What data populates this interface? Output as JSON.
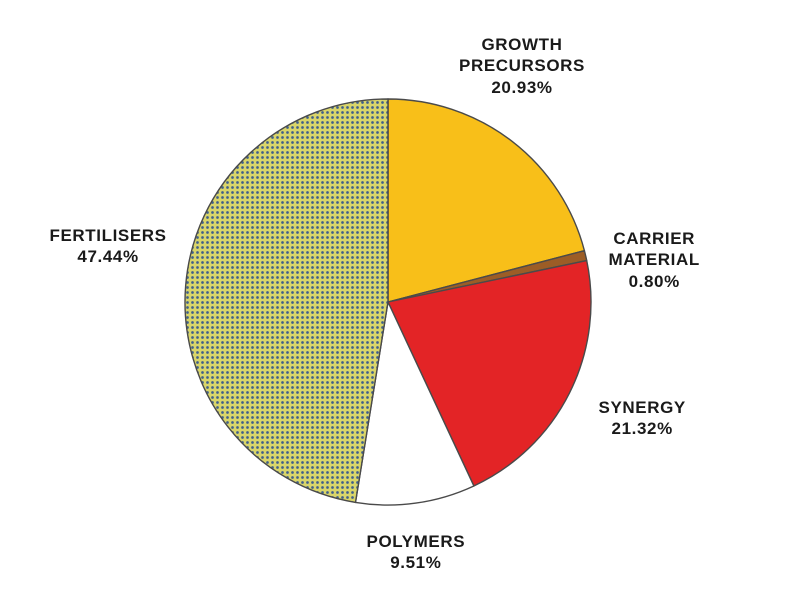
{
  "chart_data": {
    "type": "pie",
    "title": "",
    "start_angle_deg": 0,
    "direction": "clockwise",
    "slices": [
      {
        "label": [
          "GROWTH",
          "PRECURSORS"
        ],
        "value_label": "20.93%",
        "value": 20.93,
        "color": "#f8bf19",
        "fill": "solid"
      },
      {
        "label": [
          "CARRIER",
          "MATERIAL"
        ],
        "value_label": "0.80%",
        "value": 0.8,
        "color": "#9c5d26",
        "fill": "solid"
      },
      {
        "label": [
          "SYNERGY"
        ],
        "value_label": "21.32%",
        "value": 21.32,
        "color": "#e32426",
        "fill": "solid"
      },
      {
        "label": [
          "POLYMERS"
        ],
        "value_label": "9.51%",
        "value": 9.51,
        "color": "#ffffff",
        "fill": "solid"
      },
      {
        "label": [
          "FERTILISERS"
        ],
        "value_label": "47.44%",
        "value": 47.44,
        "color": "#d9d56a",
        "fill": "dotted",
        "dot_color": "#3f5f8c"
      }
    ]
  }
}
